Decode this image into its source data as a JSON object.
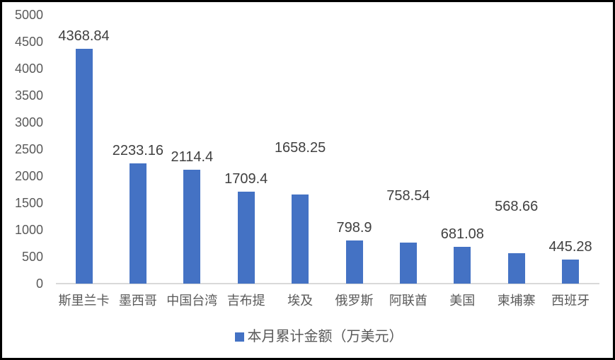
{
  "chart_data": {
    "type": "bar",
    "title": "",
    "categories": [
      "斯里兰卡",
      "墨西哥",
      "中国台湾",
      "吉布提",
      "埃及",
      "俄罗斯",
      "阿联酋",
      "美国",
      "柬埔寨",
      "西班牙"
    ],
    "values": [
      4368.84,
      2233.16,
      2114.4,
      1709.4,
      1658.25,
      798.9,
      758.54,
      681.08,
      568.66,
      445.28
    ],
    "data_labels": [
      "4368.84",
      "2233.16",
      "2114.4",
      "1709.4",
      "1658.25",
      "798.9",
      "758.54",
      "681.08",
      "568.66",
      "445.28"
    ],
    "raised_label_indices": [
      4,
      6,
      8
    ],
    "legend": "本月累计金额（万美元）",
    "legend_position": "bottom",
    "xlabel": "",
    "ylabel": "",
    "ylim": [
      0,
      5000
    ],
    "yticks": [
      0,
      500,
      1000,
      1500,
      2000,
      2500,
      3000,
      3500,
      4000,
      4500,
      5000
    ],
    "grid": false,
    "colors": {
      "bar": "#4472c4",
      "value_label_text": "#404040",
      "axis_tick_text": "#595959",
      "axis_line": "#d9d9d9",
      "border": "#000000",
      "background": "#ffffff"
    }
  }
}
